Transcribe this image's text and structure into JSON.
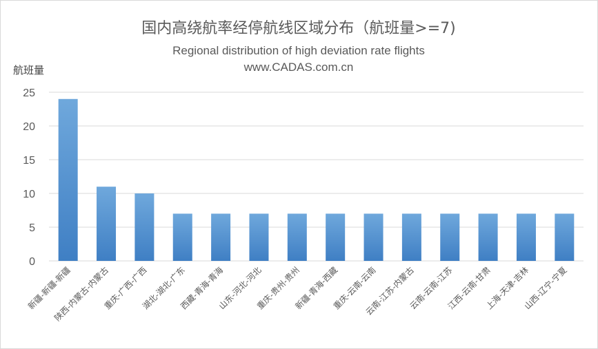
{
  "chart_data": {
    "type": "bar",
    "title": "国内高绕航率经停航线区域分布（航班量>=7)",
    "subtitle_lines": [
      "Regional distribution of high deviation rate flights",
      "www.CADAS.com.cn"
    ],
    "xlabel": "",
    "ylabel": "航班量",
    "ylim": [
      0,
      25
    ],
    "yticks": [
      0,
      5,
      10,
      15,
      20,
      25
    ],
    "grid": true,
    "legend": "none",
    "categories": [
      "新疆-新疆-新疆",
      "陕西-内蒙古-内蒙古",
      "重庆-广西-广西",
      "湖北-湖北-广东",
      "西藏-青海-青海",
      "山东-河北-河北",
      "重庆-贵州-贵州",
      "新疆-青海-西藏",
      "重庆-云南-云南",
      "云南-江苏-内蒙古",
      "云南-云南-江苏",
      "江西-云南-甘肃",
      "上海-天津-吉林",
      "山西-辽宁-宁夏"
    ],
    "values": [
      24,
      11,
      10,
      7,
      7,
      7,
      7,
      7,
      7,
      7,
      7,
      7,
      7,
      7
    ],
    "colors": {
      "bar_top": "#6fa8dc",
      "bar_bottom": "#3f7fc4",
      "grid": "#d9d9d9",
      "title": "#595959",
      "text": "#595959"
    }
  }
}
